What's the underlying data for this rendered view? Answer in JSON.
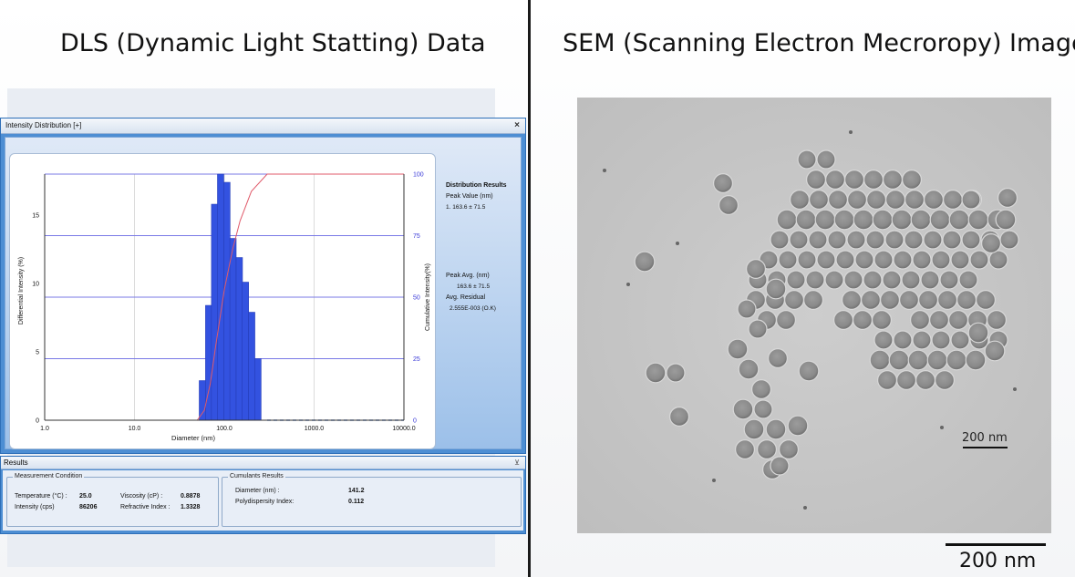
{
  "left_title": "DLS (Dynamic Light Statting) Data",
  "right_title": "SEM (Scanning Electron Mecroropy) Image",
  "dls_window": {
    "title": "Intensity Distribution [+]",
    "close": "×"
  },
  "chart_data": {
    "type": "bar",
    "xlabel": "Diameter (nm)",
    "ylabel": "Differential Intensity (%)",
    "y2label": "Cumulative Intensity(%)",
    "xscale": "log",
    "xlim": [
      1.0,
      10000.0
    ],
    "ylim": [
      0,
      18
    ],
    "y2lim": [
      0,
      100
    ],
    "x_ticks": [
      "1.0",
      "10.0",
      "100.0",
      "1000.0",
      "10000.0"
    ],
    "y_ticks": [
      "0",
      "5",
      "10",
      "15"
    ],
    "y2_ticks": [
      "0",
      "25",
      "50",
      "75",
      "100"
    ],
    "bars": [
      {
        "x": 57,
        "value": 2.9
      },
      {
        "x": 67,
        "value": 8.4
      },
      {
        "x": 78,
        "value": 15.8
      },
      {
        "x": 91,
        "value": 18.0
      },
      {
        "x": 107,
        "value": 17.4
      },
      {
        "x": 125,
        "value": 13.3
      },
      {
        "x": 147,
        "value": 11.9
      },
      {
        "x": 172,
        "value": 10.1
      },
      {
        "x": 202,
        "value": 7.9
      },
      {
        "x": 237,
        "value": 4.5
      }
    ],
    "cumulative": [
      [
        50,
        0
      ],
      [
        60,
        4
      ],
      [
        70,
        15
      ],
      [
        80,
        30
      ],
      [
        100,
        53
      ],
      [
        125,
        70
      ],
      [
        150,
        81
      ],
      [
        200,
        93
      ],
      [
        300,
        100
      ],
      [
        10000,
        100
      ]
    ],
    "grid": true
  },
  "distribution_results": {
    "heading": "Distribution Results",
    "peak_label": "Peak Value (nm)",
    "peak_value": "1. 163.6 ± 71.5",
    "peak_avg_label": "Peak Avg. (nm)",
    "peak_avg_value": "163.6 ± 71.5",
    "residual_label": "Avg. Residual",
    "residual_value": "2.555E-003  (O.K)"
  },
  "results_window": {
    "title": "Results",
    "pin": "⊻",
    "measurement_title": "Measurement Condition",
    "temp_label": "Temperature (°C) :",
    "temp_value": "25.0",
    "intensity_label": "Intensity (cps)",
    "intensity_value": "86206",
    "viscosity_label": "Viscosity (cP) :",
    "viscosity_value": "0.8878",
    "refr_label": "Refractive Index :",
    "refr_value": "1.3328",
    "cumulants_title": "Cumulants Results",
    "diameter_label": "Diameter (nm) :",
    "diameter_value": "141.2",
    "pdi_label": "Polydispersity Index:",
    "pdi_value": "0.112"
  },
  "sem": {
    "inner_scale": "200 nm",
    "scale_text": "200 nm"
  }
}
